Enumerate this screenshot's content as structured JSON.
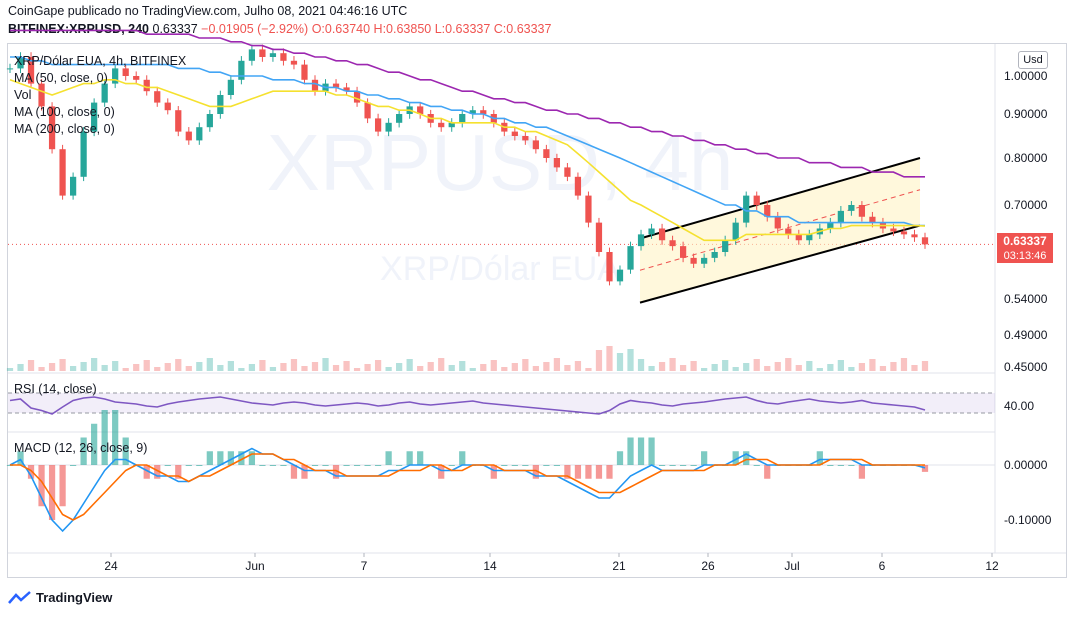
{
  "header": {
    "line1": "CoinGape publicado no TradingView.com, Julho 08, 2021 04:46:16 UTC",
    "symbol": "BITFINEX:XRPUSD, 240",
    "last": "0.63337",
    "change": "−0.01905 (−2.92%)",
    "ohlc": "O:0.63740 H:0.63850 L:0.63337 C:0.63337"
  },
  "legend": {
    "title": "XRP/Dólar EUA, 4h, BITFINEX",
    "ma50": "MA (50, close, 0)",
    "vol": "Vol",
    "ma100": "MA (100, close, 0)",
    "ma200": "MA (200, close, 0)",
    "rsi": "RSI (14, close)",
    "macd": "MACD (12, 26, close, 9)"
  },
  "watermark": {
    "big": "XRPUSD, 4h",
    "small": "XRP/Dólar EUA"
  },
  "price_tag": {
    "value": "0.63337",
    "countdown": "03:13:46"
  },
  "currency_button": "Usd",
  "brand": "TradingView",
  "colors": {
    "up": "#26a69a",
    "down": "#ef5350",
    "ma50": "#f5e12f",
    "ma100": "#42a5f5",
    "ma200": "#9c27b0",
    "rsi": "#7e57c2",
    "macd": "#2196f3",
    "signal": "#ff6d00"
  },
  "chart_data": {
    "type": "line",
    "price_axis": {
      "ticks": [
        "1.00000",
        "0.90000",
        "0.80000",
        "0.70000",
        "0.54000",
        "0.49000",
        "0.45000"
      ]
    },
    "rsi_axis": {
      "ticks": [
        "40.00"
      ]
    },
    "macd_axis": {
      "ticks": [
        "0.00000",
        "-0.10000"
      ]
    },
    "x_ticks": [
      "24",
      "Jun",
      "7",
      "14",
      "21",
      "26",
      "Jul",
      "6",
      "12"
    ],
    "series": [
      {
        "name": "XRPUSD",
        "values": [
          1.02,
          1.05,
          0.98,
          0.92,
          0.82,
          0.72,
          0.76,
          0.86,
          0.93,
          0.98,
          1.02,
          1.0,
          0.99,
          0.96,
          0.93,
          0.91,
          0.86,
          0.84,
          0.87,
          0.9,
          0.95,
          0.99,
          1.04,
          1.07,
          1.05,
          1.06,
          1.04,
          1.03,
          0.99,
          0.96,
          0.98,
          0.97,
          0.96,
          0.93,
          0.89,
          0.86,
          0.88,
          0.9,
          0.92,
          0.9,
          0.88,
          0.87,
          0.88,
          0.9,
          0.91,
          0.9,
          0.88,
          0.86,
          0.85,
          0.84,
          0.82,
          0.8,
          0.78,
          0.76,
          0.72,
          0.67,
          0.62,
          0.57,
          0.59,
          0.63,
          0.65,
          0.66,
          0.64,
          0.63,
          0.61,
          0.6,
          0.61,
          0.62,
          0.64,
          0.67,
          0.72,
          0.7,
          0.68,
          0.66,
          0.65,
          0.64,
          0.65,
          0.66,
          0.67,
          0.69,
          0.7,
          0.68,
          0.67,
          0.66,
          0.655,
          0.65,
          0.645,
          0.633
        ]
      },
      {
        "name": "MA (50, close, 0)",
        "values": [
          0.99,
          0.98,
          0.97,
          0.96,
          0.95,
          0.96,
          0.97,
          0.98,
          0.98,
          0.99,
          0.99,
          0.98,
          0.98,
          0.97,
          0.97,
          0.96,
          0.95,
          0.94,
          0.93,
          0.92,
          0.92,
          0.92,
          0.93,
          0.94,
          0.95,
          0.96,
          0.96,
          0.96,
          0.96,
          0.96,
          0.96,
          0.95,
          0.95,
          0.94,
          0.93,
          0.92,
          0.92,
          0.91,
          0.91,
          0.9,
          0.89,
          0.89,
          0.88,
          0.88,
          0.88,
          0.88,
          0.88,
          0.87,
          0.87,
          0.86,
          0.86,
          0.85,
          0.84,
          0.83,
          0.81,
          0.79,
          0.77,
          0.75,
          0.73,
          0.71,
          0.7,
          0.69,
          0.68,
          0.67,
          0.66,
          0.65,
          0.64,
          0.64,
          0.64,
          0.64,
          0.65,
          0.65,
          0.65,
          0.65,
          0.65,
          0.65,
          0.65,
          0.655,
          0.66,
          0.66,
          0.665,
          0.665,
          0.665,
          0.665,
          0.665,
          0.665,
          0.665,
          0.664
        ]
      },
      {
        "name": "MA (100, close, 0)",
        "values": [
          1.05,
          1.05,
          1.04,
          1.04,
          1.03,
          1.03,
          1.03,
          1.03,
          1.03,
          1.03,
          1.03,
          1.03,
          1.03,
          1.03,
          1.03,
          1.03,
          1.02,
          1.02,
          1.02,
          1.01,
          1.01,
          1.0,
          1.0,
          1.0,
          1.0,
          0.99,
          0.99,
          0.99,
          0.98,
          0.98,
          0.97,
          0.97,
          0.96,
          0.96,
          0.95,
          0.95,
          0.94,
          0.94,
          0.93,
          0.93,
          0.92,
          0.92,
          0.91,
          0.91,
          0.9,
          0.9,
          0.89,
          0.89,
          0.88,
          0.88,
          0.87,
          0.87,
          0.86,
          0.85,
          0.84,
          0.83,
          0.82,
          0.81,
          0.8,
          0.79,
          0.78,
          0.77,
          0.76,
          0.75,
          0.74,
          0.73,
          0.72,
          0.71,
          0.7,
          0.7,
          0.69,
          0.69,
          0.68,
          0.68,
          0.68,
          0.67,
          0.67,
          0.67,
          0.67,
          0.67,
          0.67,
          0.67,
          0.67,
          0.67,
          0.67,
          0.67,
          0.665,
          0.665
        ]
      },
      {
        "name": "MA (200, close, 0)",
        "values": [
          1.12,
          1.12,
          1.12,
          1.12,
          1.12,
          1.12,
          1.12,
          1.12,
          1.12,
          1.12,
          1.12,
          1.12,
          1.12,
          1.11,
          1.11,
          1.11,
          1.11,
          1.11,
          1.1,
          1.1,
          1.1,
          1.09,
          1.09,
          1.08,
          1.08,
          1.07,
          1.07,
          1.06,
          1.06,
          1.05,
          1.05,
          1.04,
          1.04,
          1.03,
          1.03,
          1.02,
          1.01,
          1.01,
          1.0,
          0.99,
          0.99,
          0.98,
          0.97,
          0.96,
          0.96,
          0.95,
          0.94,
          0.94,
          0.93,
          0.93,
          0.92,
          0.91,
          0.91,
          0.9,
          0.9,
          0.89,
          0.89,
          0.88,
          0.88,
          0.87,
          0.87,
          0.86,
          0.86,
          0.85,
          0.85,
          0.84,
          0.84,
          0.83,
          0.83,
          0.82,
          0.82,
          0.81,
          0.81,
          0.8,
          0.8,
          0.8,
          0.79,
          0.79,
          0.79,
          0.78,
          0.78,
          0.78,
          0.77,
          0.77,
          0.77,
          0.76,
          0.76,
          0.76
        ]
      }
    ],
    "rsi": [
      55,
      58,
      40,
      35,
      28,
      42,
      55,
      60,
      62,
      58,
      52,
      50,
      48,
      44,
      42,
      48,
      52,
      55,
      58,
      60,
      62,
      58,
      54,
      50,
      48,
      46,
      50,
      52,
      50,
      46,
      44,
      46,
      48,
      50,
      48,
      44,
      46,
      50,
      52,
      48,
      46,
      48,
      50,
      52,
      54,
      50,
      48,
      46,
      44,
      42,
      40,
      38,
      36,
      34,
      32,
      30,
      28,
      35,
      48,
      55,
      52,
      50,
      46,
      44,
      48,
      50,
      52,
      55,
      58,
      60,
      62,
      55,
      50,
      48,
      52,
      55,
      58,
      54,
      52,
      50,
      52,
      55,
      50,
      48,
      46,
      44,
      42,
      36
    ],
    "macd": [
      0.0,
      0.01,
      -0.02,
      -0.06,
      -0.1,
      -0.12,
      -0.1,
      -0.07,
      -0.04,
      -0.01,
      0.01,
      0.01,
      0.0,
      -0.01,
      -0.02,
      -0.02,
      -0.03,
      -0.03,
      -0.02,
      -0.01,
      0.0,
      0.01,
      0.02,
      0.03,
      0.02,
      0.02,
      0.01,
      0.0,
      -0.01,
      -0.01,
      -0.01,
      -0.02,
      -0.02,
      -0.02,
      -0.02,
      -0.02,
      -0.01,
      -0.01,
      0.0,
      0.0,
      0.0,
      -0.01,
      -0.01,
      0.0,
      0.0,
      0.0,
      -0.01,
      -0.01,
      -0.01,
      -0.01,
      -0.02,
      -0.02,
      -0.02,
      -0.03,
      -0.04,
      -0.05,
      -0.06,
      -0.06,
      -0.04,
      -0.02,
      -0.01,
      0.0,
      -0.01,
      -0.01,
      -0.01,
      -0.01,
      0.0,
      0.0,
      0.0,
      0.01,
      0.02,
      0.01,
      0.0,
      0.0,
      0.0,
      0.0,
      0.0,
      0.01,
      0.01,
      0.01,
      0.01,
      0.0,
      0.0,
      0.0,
      0.0,
      0.0,
      0.0,
      -0.005
    ],
    "signal": [
      0.0,
      0.0,
      -0.01,
      -0.03,
      -0.06,
      -0.09,
      -0.1,
      -0.09,
      -0.07,
      -0.05,
      -0.03,
      -0.01,
      0.0,
      0.0,
      -0.01,
      -0.02,
      -0.02,
      -0.03,
      -0.02,
      -0.02,
      -0.01,
      0.0,
      0.01,
      0.02,
      0.02,
      0.02,
      0.01,
      0.01,
      0.0,
      -0.01,
      -0.01,
      -0.01,
      -0.02,
      -0.02,
      -0.02,
      -0.02,
      -0.02,
      -0.01,
      -0.01,
      -0.01,
      0.0,
      0.0,
      -0.01,
      -0.01,
      0.0,
      0.0,
      0.0,
      -0.01,
      -0.01,
      -0.01,
      -0.01,
      -0.02,
      -0.02,
      -0.02,
      -0.03,
      -0.04,
      -0.05,
      -0.05,
      -0.05,
      -0.04,
      -0.03,
      -0.02,
      -0.01,
      -0.01,
      -0.01,
      -0.01,
      -0.01,
      0.0,
      0.0,
      0.0,
      0.01,
      0.01,
      0.01,
      0.0,
      0.0,
      0.0,
      0.0,
      0.0,
      0.01,
      0.01,
      0.01,
      0.01,
      0.0,
      0.0,
      0.0,
      0.0,
      0.0,
      0.0
    ],
    "channel": {
      "upper": [
        [
          0.643,
          0.0
        ],
        [
          0.8,
          1.0
        ]
      ],
      "lower": [
        [
          0.535,
          0.0
        ],
        [
          0.665,
          1.0
        ]
      ]
    }
  }
}
